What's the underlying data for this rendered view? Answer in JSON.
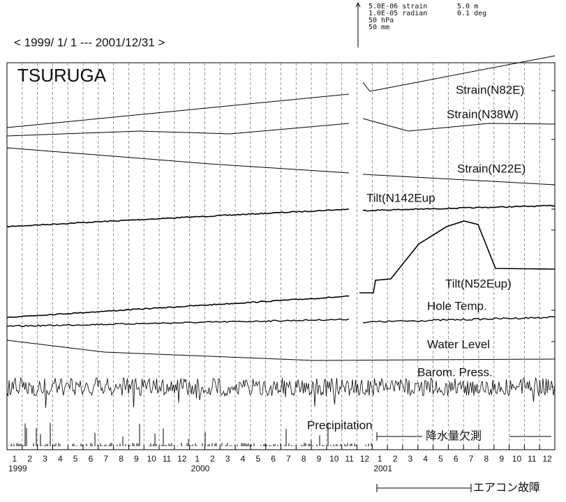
{
  "header": {
    "period": "< 1999/ 1/ 1 --- 2001/12/31 >",
    "scale_left": [
      "5.0E-06 strain",
      "1.0E-05 radian",
      "50 hPa",
      "50 mm"
    ],
    "scale_right": [
      "5.0 m",
      "0.1 deg"
    ]
  },
  "station": "TSURUGA",
  "traces": [
    "Strain(N82E)",
    "Strain(N38W)",
    "Strain(N22E)",
    "Tilt(N142Eup",
    "Tilt(N52Eup)",
    "Hole Temp.",
    "Water Level",
    "Barom. Press.",
    "Precipitation"
  ],
  "months": [
    "1",
    "2",
    "3",
    "4",
    "5",
    "6",
    "7",
    "8",
    "9",
    "10",
    "11",
    "12",
    "1",
    "2",
    "3",
    "4",
    "5",
    "6",
    "7",
    "8",
    "9",
    "10",
    "11",
    "12",
    "1",
    "2",
    "3",
    "4",
    "5",
    "6",
    "7",
    "8",
    "9",
    "10",
    "11",
    "12"
  ],
  "years": [
    "1999",
    "2000",
    "2001"
  ],
  "notes": {
    "precip_missing": "降水量欠測",
    "aircon_failure": "エアコン故障"
  }
}
